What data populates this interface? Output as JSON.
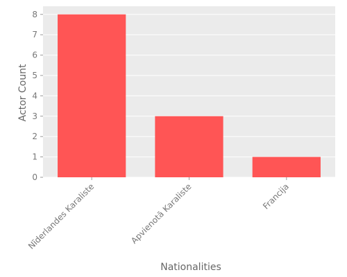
{
  "chart_data": {
    "type": "bar",
    "categories": [
      "Nīderlandes Karaliste",
      "Apvienotā Karaliste",
      "Francija"
    ],
    "values": [
      8,
      3,
      1
    ],
    "title": "",
    "xlabel": "Nationalities",
    "ylabel": "Actor Count",
    "ylim": [
      0,
      8.4
    ],
    "yticks": [
      0,
      1,
      2,
      3,
      4,
      5,
      6,
      7,
      8
    ],
    "grid": true,
    "colors": {
      "bar": "#ff5555",
      "plot_background": "#ebebeb",
      "grid": "#ffffff"
    }
  }
}
